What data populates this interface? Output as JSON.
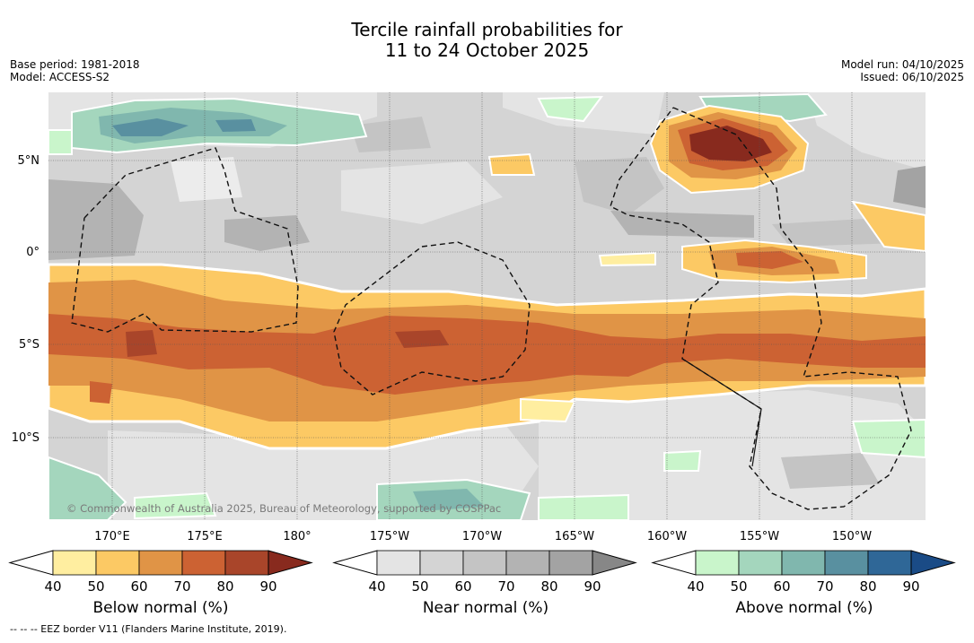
{
  "title": {
    "line1": "Tercile rainfall probabilities for",
    "line2": "11 to 24 October 2025"
  },
  "meta_left": {
    "base_period": "Base period: 1981-2018",
    "model": "Model: ACCESS-S2"
  },
  "meta_right": {
    "model_run": "Model run: 04/10/2025",
    "issued": "Issued: 06/10/2025"
  },
  "lat_labels": [
    "5°N",
    "0°",
    "5°S",
    "10°S"
  ],
  "lon_labels": [
    "170°E",
    "175°E",
    "180°",
    "175°W",
    "170°W",
    "165°W",
    "160°W",
    "155°W",
    "150°W"
  ],
  "copyright": "© Commonwealth of Australia 2025, Bureau of Meteorology, supported by COSPPac",
  "colorbars": [
    {
      "label": "Below normal (%)",
      "ticks": [
        "40",
        "50",
        "60",
        "70",
        "80",
        "90"
      ],
      "colors": [
        "#ffeea0",
        "#fcc964",
        "#e09446",
        "#cc6233",
        "#a9452a",
        "#882a1e"
      ]
    },
    {
      "label": "Near normal (%)",
      "ticks": [
        "40",
        "50",
        "60",
        "70",
        "80",
        "90"
      ],
      "colors": [
        "#e4e4e4",
        "#d4d4d4",
        "#c4c4c4",
        "#b3b3b3",
        "#a3a3a3",
        "#878787"
      ]
    },
    {
      "label": "Above normal (%)",
      "ticks": [
        "40",
        "50",
        "60",
        "70",
        "80",
        "90"
      ],
      "colors": [
        "#c9f5cb",
        "#a4d6bd",
        "#80b7ae",
        "#5990a0",
        "#2f6797",
        "#1a4b86"
      ]
    }
  ],
  "footer": "--  --  -- EEZ border V11 (Flanders Marine Institute, 2019).",
  "palette": {
    "white": "#ffffff",
    "below40": "#ffeea0",
    "below50": "#fcc964",
    "below60": "#e09446",
    "below70": "#cc6233",
    "below80": "#a9452a",
    "below90": "#882a1e",
    "near40": "#e4e4e4",
    "near50": "#d4d4d4",
    "near60": "#c4c4c4",
    "near70": "#b3b3b3",
    "above40": "#c9f5cb",
    "above50": "#a4d6bd",
    "above60": "#80b7ae",
    "above70": "#5990a0"
  }
}
